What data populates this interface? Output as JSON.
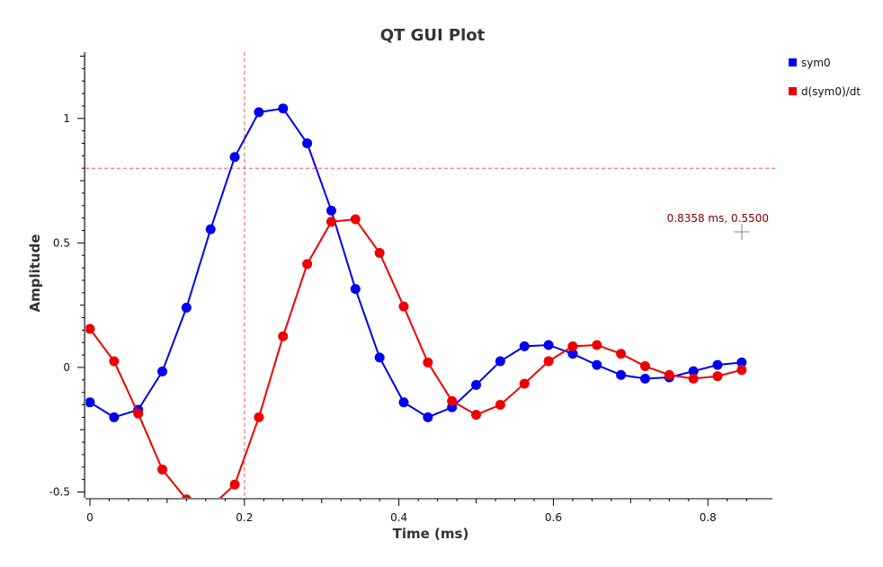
{
  "chart_data": {
    "type": "line",
    "title": "QT GUI Plot",
    "xlabel": "Time (ms)",
    "ylabel": "Amplitude",
    "xlim": [
      0,
      0.875
    ],
    "ylim": [
      -0.5,
      1.25
    ],
    "xticks": [
      "0",
      "0.2",
      "0.4",
      "0.6",
      "0.8"
    ],
    "xtick_values": [
      0,
      0.2,
      0.4,
      0.6,
      0.8
    ],
    "yticks": [
      "-0.5",
      "0",
      "0.5",
      "1"
    ],
    "ytick_values": [
      -0.5,
      0,
      0.5,
      1
    ],
    "grid": false,
    "legend_position": "right",
    "x": [
      0,
      0.03125,
      0.0625,
      0.09375,
      0.125,
      0.15625,
      0.1875,
      0.21875,
      0.25,
      0.28125,
      0.3125,
      0.34375,
      0.375,
      0.40625,
      0.4375,
      0.46875,
      0.5,
      0.53125,
      0.5625,
      0.59375,
      0.625,
      0.65625,
      0.6875,
      0.71875,
      0.75,
      0.78125,
      0.8125,
      0.84375
    ],
    "series": [
      {
        "name": "sym0",
        "color": "#0000ee",
        "values": [
          -0.14,
          -0.2,
          -0.17,
          -0.016,
          0.24,
          0.555,
          0.845,
          1.025,
          1.04,
          0.9,
          0.63,
          0.315,
          0.04,
          -0.14,
          -0.2,
          -0.16,
          -0.07,
          0.025,
          0.085,
          0.09,
          0.055,
          0.01,
          -0.03,
          -0.045,
          -0.04,
          -0.015,
          0.01,
          0.02
        ]
      },
      {
        "name": "d(sym0)/dt",
        "color": "#ee0000",
        "values": [
          0.155,
          0.025,
          -0.185,
          -0.41,
          -0.53,
          -0.56,
          -0.47,
          -0.2,
          0.125,
          0.415,
          0.585,
          0.595,
          0.46,
          0.245,
          0.02,
          -0.135,
          -0.19,
          -0.15,
          -0.065,
          0.025,
          0.085,
          0.09,
          0.055,
          0.005,
          -0.03,
          -0.045,
          -0.035,
          -0.01
        ]
      }
    ],
    "marker": {
      "x": 0.2,
      "y": 0.8,
      "color": "#ff5555"
    },
    "cursor_readout": "0.8358 ms, 0.5500"
  },
  "icons": {
    "cursor": "crosshair-cursor-icon"
  }
}
